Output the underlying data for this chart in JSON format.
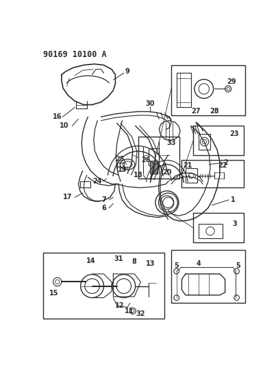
{
  "title": "90169 10100 A",
  "bg_color": "#ffffff",
  "line_color": "#2a2a2a",
  "title_fontsize": 8.5,
  "label_fontsize": 7,
  "fig_width": 4.03,
  "fig_height": 5.33,
  "dpi": 100
}
